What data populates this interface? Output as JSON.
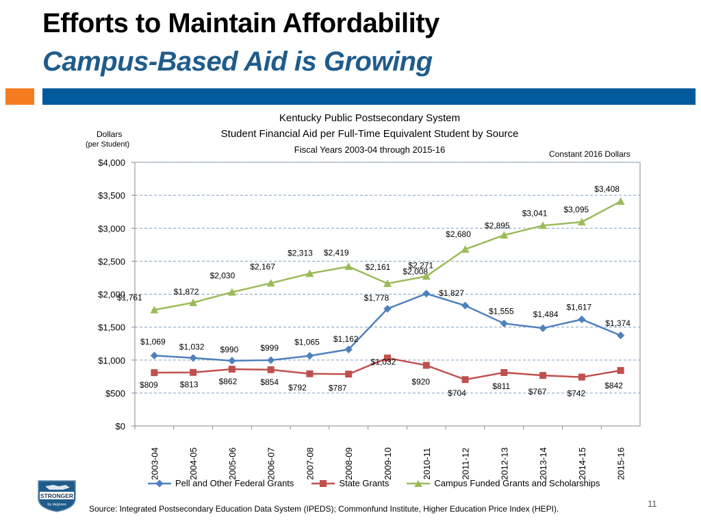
{
  "header": {
    "title": "Efforts to Maintain Affordability",
    "subtitle": "Campus-Based Aid is Growing"
  },
  "colors": {
    "accent_orange": "#f47b20",
    "brand_blue": "#005a9c",
    "subtitle_blue": "#1f5c8b",
    "series_pell": "#4f81bd",
    "series_state": "#c0504d",
    "series_campus": "#9bbb59"
  },
  "chart_data": {
    "type": "line",
    "title_lines": [
      "Kentucky Public Postsecondary System",
      "Student Financial Aid per Full-Time Equivalent Student by Source",
      "Fiscal Years 2003-04 through 2015-16"
    ],
    "ylabel_line1": "Dollars",
    "ylabel_line2": "(per Student)",
    "note": "Constant 2016 Dollars",
    "ylim": [
      0,
      4000
    ],
    "yticks": [
      0,
      500,
      1000,
      1500,
      2000,
      2500,
      3000,
      3500,
      4000
    ],
    "ytick_labels": [
      "$0",
      "$500",
      "$1,000",
      "$1,500",
      "$2,000",
      "$2,500",
      "$3,000",
      "$3,500",
      "$4,000"
    ],
    "grid": true,
    "categories": [
      "2003-04",
      "2004-05",
      "2005-06",
      "2006-07",
      "2007-08",
      "2008-09",
      "2009-10",
      "2010-11",
      "2011-12",
      "2012-13",
      "2013-14",
      "2014-15",
      "2015-16"
    ],
    "series": [
      {
        "name": "Pell and Other Federal Grants",
        "marker": "diamond",
        "values": [
          1069,
          1032,
          990,
          999,
          1065,
          1162,
          1778,
          2008,
          1827,
          1555,
          1484,
          1617,
          1374
        ],
        "labels": [
          "$1,069",
          "$1,032",
          "$990",
          "$999",
          "$1,065",
          "$1,162",
          "$1,778",
          "$2,008",
          "$1,827",
          "$1,555",
          "$1,484",
          "$1,617",
          "$1,374"
        ]
      },
      {
        "name": "State Grants",
        "marker": "square",
        "values": [
          809,
          813,
          862,
          854,
          792,
          787,
          1032,
          920,
          704,
          811,
          767,
          742,
          842
        ],
        "labels": [
          "$809",
          "$813",
          "$862",
          "$854",
          "$792",
          "$787",
          "$1,032",
          "$920",
          "$704",
          "$811",
          "$767",
          "$742",
          "$842"
        ]
      },
      {
        "name": "Campus Funded Grants and Scholarships",
        "marker": "triangle",
        "values": [
          1761,
          1872,
          2030,
          2167,
          2313,
          2419,
          2161,
          2271,
          2680,
          2895,
          3041,
          3095,
          3408
        ],
        "labels": [
          "$1,761",
          "$1,872",
          "$2,030",
          "$2,167",
          "$2,313",
          "$2,419",
          "$2,161",
          "$2,271",
          "$2,680",
          "$2,895",
          "$3,041",
          "$3,095",
          "$3,408"
        ]
      }
    ]
  },
  "logo": {
    "text_main": "STRONGER",
    "text_sub": "by degrees"
  },
  "footer": {
    "source": "Source:  Integrated Postsecondary Education Data System (IPEDS); Commonfund Institute, Higher Education Price Index (HEPI).",
    "page_number": "11"
  }
}
